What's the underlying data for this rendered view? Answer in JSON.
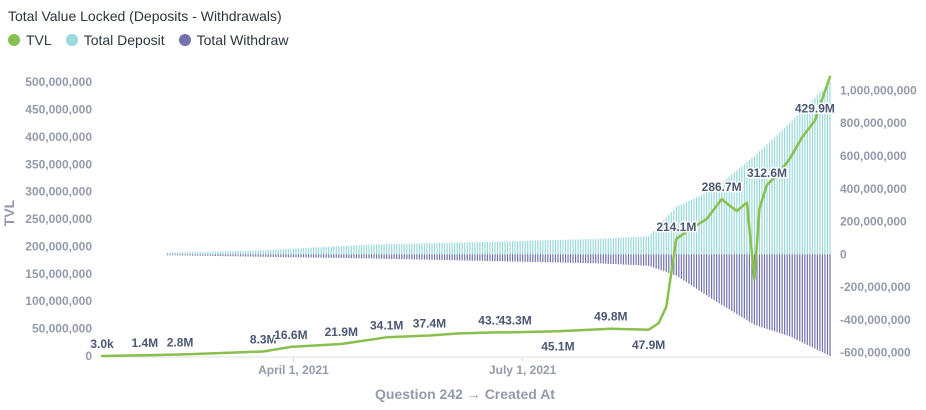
{
  "chart_data": {
    "type": "line+bar",
    "title": "Total Value Locked (Deposits - Withdrawals)",
    "xlabel": "Question 242 → Created At",
    "ylabel": "TVL",
    "x_ticks": [
      "April 1, 2021",
      "July 1, 2021"
    ],
    "x_domain": [
      "2021-01-15",
      "2021-10-31"
    ],
    "y_left": {
      "min": 0,
      "max": 515000000,
      "ticks": [
        "0",
        "50,000,000",
        "100,000,000",
        "150,000,000",
        "200,000,000",
        "250,000,000",
        "300,000,000",
        "350,000,000",
        "400,000,000",
        "450,000,000",
        "500,000,000"
      ]
    },
    "y_right": {
      "min": -620000000,
      "max": 1100000000,
      "ticks": [
        "-600,000,000",
        "-400,000,000",
        "-200,000,000",
        "0",
        "200,000,000",
        "400,000,000",
        "600,000,000",
        "800,000,000",
        "1,000,000,000"
      ]
    },
    "legend": [
      {
        "name": "TVL",
        "color": "#88bf4d"
      },
      {
        "name": "Total Deposit",
        "color": "#98d9d9"
      },
      {
        "name": "Total Withdraw",
        "color": "#7172ad"
      }
    ],
    "tvl": {
      "name": "TVL",
      "color": "#88bf4d",
      "x": [
        "2021-01-15",
        "2021-02-01",
        "2021-02-15",
        "2021-03-01",
        "2021-03-20",
        "2021-03-31",
        "2021-04-20",
        "2021-05-08",
        "2021-05-25",
        "2021-06-05",
        "2021-06-20",
        "2021-06-28",
        "2021-07-15",
        "2021-08-05",
        "2021-08-20",
        "2021-08-24",
        "2021-08-27",
        "2021-08-31",
        "2021-09-05",
        "2021-09-12",
        "2021-09-18",
        "2021-09-21",
        "2021-09-24",
        "2021-09-28",
        "2021-10-01",
        "2021-10-03",
        "2021-10-06",
        "2021-10-10",
        "2021-10-15",
        "2021-10-20",
        "2021-10-25",
        "2021-10-28",
        "2021-10-31"
      ],
      "y": [
        3000,
        1400000,
        2800000,
        5000000,
        8300000,
        16600000,
        21900000,
        34100000,
        37400000,
        41000000,
        43100000,
        43300000,
        45100000,
        49800000,
        47900000,
        60000000,
        90000000,
        214100000,
        230000000,
        250000000,
        286700000,
        275000000,
        265000000,
        280000000,
        140000000,
        270000000,
        312600000,
        330000000,
        360000000,
        400000000,
        429900000,
        470000000,
        510000000
      ]
    },
    "deposit": {
      "name": "Total Deposit",
      "color": "#98d9d9",
      "x": [
        "2021-02-10",
        "2021-03-20",
        "2021-05-01",
        "2021-06-15",
        "2021-08-01",
        "2021-08-20",
        "2021-08-31",
        "2021-09-15",
        "2021-10-01",
        "2021-10-15",
        "2021-10-31"
      ],
      "y": [
        10000000,
        25000000,
        60000000,
        75000000,
        95000000,
        110000000,
        290000000,
        400000000,
        600000000,
        800000000,
        1050000000
      ]
    },
    "withdraw": {
      "name": "Total Withdraw",
      "color": "#7172ad",
      "x": [
        "2021-02-10",
        "2021-03-20",
        "2021-05-01",
        "2021-06-15",
        "2021-08-01",
        "2021-08-20",
        "2021-08-31",
        "2021-09-15",
        "2021-10-01",
        "2021-10-15",
        "2021-10-31"
      ],
      "y": [
        -5000000,
        -15000000,
        -25000000,
        -40000000,
        -55000000,
        -70000000,
        -130000000,
        -280000000,
        -430000000,
        -500000000,
        -620000000
      ]
    },
    "data_labels": [
      {
        "x": "2021-01-15",
        "y": 3000,
        "text": "3.0k",
        "pos": "above"
      },
      {
        "x": "2021-02-01",
        "y": 1400000,
        "text": "1.4M",
        "pos": "above"
      },
      {
        "x": "2021-02-15",
        "y": 2800000,
        "text": "2.8M",
        "pos": "above"
      },
      {
        "x": "2021-03-20",
        "y": 8300000,
        "text": "8.3M",
        "pos": "above"
      },
      {
        "x": "2021-03-31",
        "y": 16600000,
        "text": "16.6M",
        "pos": "above"
      },
      {
        "x": "2021-04-20",
        "y": 21900000,
        "text": "21.9M",
        "pos": "above"
      },
      {
        "x": "2021-05-08",
        "y": 34100000,
        "text": "34.1M",
        "pos": "above"
      },
      {
        "x": "2021-05-25",
        "y": 37400000,
        "text": "37.4M",
        "pos": "above"
      },
      {
        "x": "2021-06-20",
        "y": 43100000,
        "text": "43.1M",
        "pos": "above"
      },
      {
        "x": "2021-06-28",
        "y": 43300000,
        "text": "43.3M",
        "pos": "above"
      },
      {
        "x": "2021-07-15",
        "y": 45100000,
        "text": "45.1M",
        "pos": "below"
      },
      {
        "x": "2021-08-05",
        "y": 49800000,
        "text": "49.8M",
        "pos": "above"
      },
      {
        "x": "2021-08-20",
        "y": 47900000,
        "text": "47.9M",
        "pos": "below"
      },
      {
        "x": "2021-08-31",
        "y": 214100000,
        "text": "214.1M",
        "pos": "above"
      },
      {
        "x": "2021-09-18",
        "y": 286700000,
        "text": "286.7M",
        "pos": "above"
      },
      {
        "x": "2021-10-06",
        "y": 312600000,
        "text": "312.6M",
        "pos": "above"
      },
      {
        "x": "2021-10-25",
        "y": 429900000,
        "text": "429.9M",
        "pos": "above"
      }
    ]
  }
}
